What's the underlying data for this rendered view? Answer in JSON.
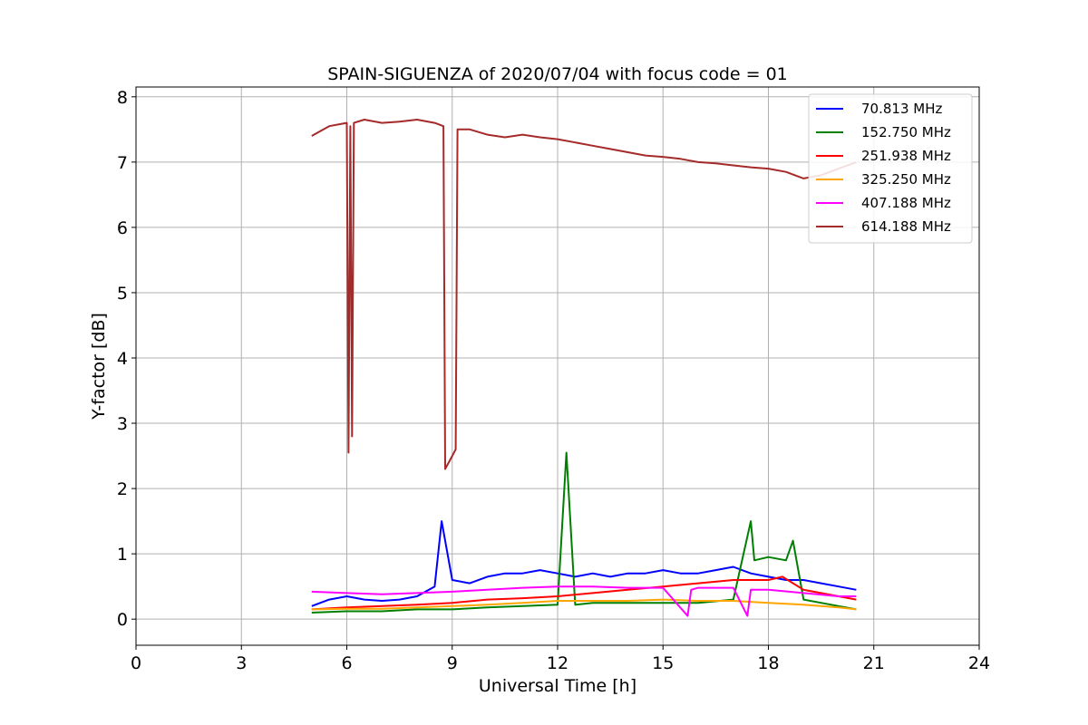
{
  "chart_data": {
    "type": "line",
    "title": "SPAIN-SIGUENZA of 2020/07/04 with focus code = 01",
    "xlabel": "Universal Time [h]",
    "ylabel": "Y-factor [dB]",
    "xlim": [
      0,
      24
    ],
    "ylim": [
      -0.4,
      8.15
    ],
    "xticks": [
      0,
      3,
      6,
      9,
      12,
      15,
      18,
      21,
      24
    ],
    "yticks": [
      0,
      1,
      2,
      3,
      4,
      5,
      6,
      7,
      8
    ],
    "grid": true,
    "legend_position": "top-right",
    "series": [
      {
        "name": " 70.813 MHz",
        "color": "#0000ff",
        "x": [
          5.0,
          5.5,
          6.0,
          6.5,
          7.0,
          7.5,
          8.0,
          8.5,
          8.7,
          9.0,
          9.5,
          10.0,
          10.5,
          11.0,
          11.5,
          12.0,
          12.5,
          13.0,
          13.5,
          14.0,
          14.5,
          15.0,
          15.5,
          16.0,
          16.5,
          17.0,
          17.5,
          18.0,
          18.5,
          19.0,
          19.5,
          20.0,
          20.5
        ],
        "y": [
          0.2,
          0.3,
          0.35,
          0.3,
          0.28,
          0.3,
          0.35,
          0.5,
          1.5,
          0.6,
          0.55,
          0.65,
          0.7,
          0.7,
          0.75,
          0.7,
          0.65,
          0.7,
          0.65,
          0.7,
          0.7,
          0.75,
          0.7,
          0.7,
          0.75,
          0.8,
          0.7,
          0.65,
          0.6,
          0.6,
          0.55,
          0.5,
          0.45
        ]
      },
      {
        "name": "152.750 MHz",
        "color": "#008000",
        "x": [
          5.0,
          6.0,
          7.0,
          8.0,
          9.0,
          10.0,
          11.0,
          12.0,
          12.25,
          12.5,
          13.0,
          14.0,
          15.0,
          16.0,
          17.0,
          17.5,
          17.6,
          18.0,
          18.5,
          18.7,
          19.0,
          20.0,
          20.5
        ],
        "y": [
          0.1,
          0.12,
          0.12,
          0.15,
          0.15,
          0.18,
          0.2,
          0.22,
          2.55,
          0.22,
          0.25,
          0.25,
          0.25,
          0.25,
          0.3,
          1.5,
          0.9,
          0.95,
          0.9,
          1.2,
          0.3,
          0.2,
          0.15
        ]
      },
      {
        "name": "251.938 MHz",
        "color": "#ff0000",
        "x": [
          5.0,
          6.0,
          7.0,
          8.0,
          9.0,
          10.0,
          11.0,
          12.0,
          13.0,
          14.0,
          15.0,
          16.0,
          17.0,
          18.0,
          18.4,
          19.0,
          20.0,
          20.5
        ],
        "y": [
          0.15,
          0.18,
          0.2,
          0.22,
          0.25,
          0.3,
          0.32,
          0.35,
          0.4,
          0.45,
          0.5,
          0.55,
          0.6,
          0.6,
          0.65,
          0.45,
          0.35,
          0.3
        ]
      },
      {
        "name": "325.250 MHz",
        "color": "#ffa500",
        "x": [
          5.0,
          6.0,
          7.0,
          8.0,
          9.0,
          10.0,
          11.0,
          12.0,
          13.0,
          14.0,
          15.0,
          16.0,
          17.0,
          18.0,
          19.0,
          20.0,
          20.5
        ],
        "y": [
          0.15,
          0.16,
          0.16,
          0.18,
          0.2,
          0.22,
          0.25,
          0.28,
          0.28,
          0.28,
          0.3,
          0.28,
          0.28,
          0.25,
          0.22,
          0.18,
          0.15
        ]
      },
      {
        "name": "407.188 MHz",
        "color": "#ff00ff",
        "x": [
          5.0,
          6.0,
          7.0,
          8.0,
          9.0,
          10.0,
          11.0,
          12.0,
          13.0,
          14.0,
          15.0,
          15.7,
          15.8,
          16.0,
          17.0,
          17.4,
          17.5,
          18.0,
          19.0,
          20.0,
          20.5
        ],
        "y": [
          0.42,
          0.4,
          0.38,
          0.4,
          0.42,
          0.45,
          0.48,
          0.5,
          0.5,
          0.48,
          0.48,
          0.05,
          0.45,
          0.48,
          0.48,
          0.05,
          0.45,
          0.45,
          0.4,
          0.35,
          0.35
        ]
      },
      {
        "name": "614.188 MHz",
        "color": "#a52a2a",
        "x": [
          5.0,
          5.5,
          6.0,
          6.05,
          6.1,
          6.15,
          6.2,
          6.5,
          7.0,
          7.5,
          8.0,
          8.5,
          8.75,
          8.8,
          9.0,
          9.1,
          9.15,
          9.5,
          10.0,
          10.5,
          11.0,
          11.5,
          12.0,
          12.5,
          13.0,
          13.5,
          14.0,
          14.5,
          15.0,
          15.5,
          16.0,
          16.5,
          17.0,
          17.5,
          18.0,
          18.5,
          19.0,
          19.5,
          20.0,
          20.5
        ],
        "y": [
          7.4,
          7.55,
          7.6,
          2.55,
          7.55,
          2.8,
          7.6,
          7.65,
          7.6,
          7.62,
          7.65,
          7.6,
          7.55,
          2.3,
          2.5,
          2.6,
          7.5,
          7.5,
          7.42,
          7.38,
          7.42,
          7.38,
          7.35,
          7.3,
          7.25,
          7.2,
          7.15,
          7.1,
          7.08,
          7.05,
          7.0,
          6.98,
          6.95,
          6.92,
          6.9,
          6.85,
          6.75,
          6.8,
          6.9,
          7.0
        ]
      }
    ]
  }
}
